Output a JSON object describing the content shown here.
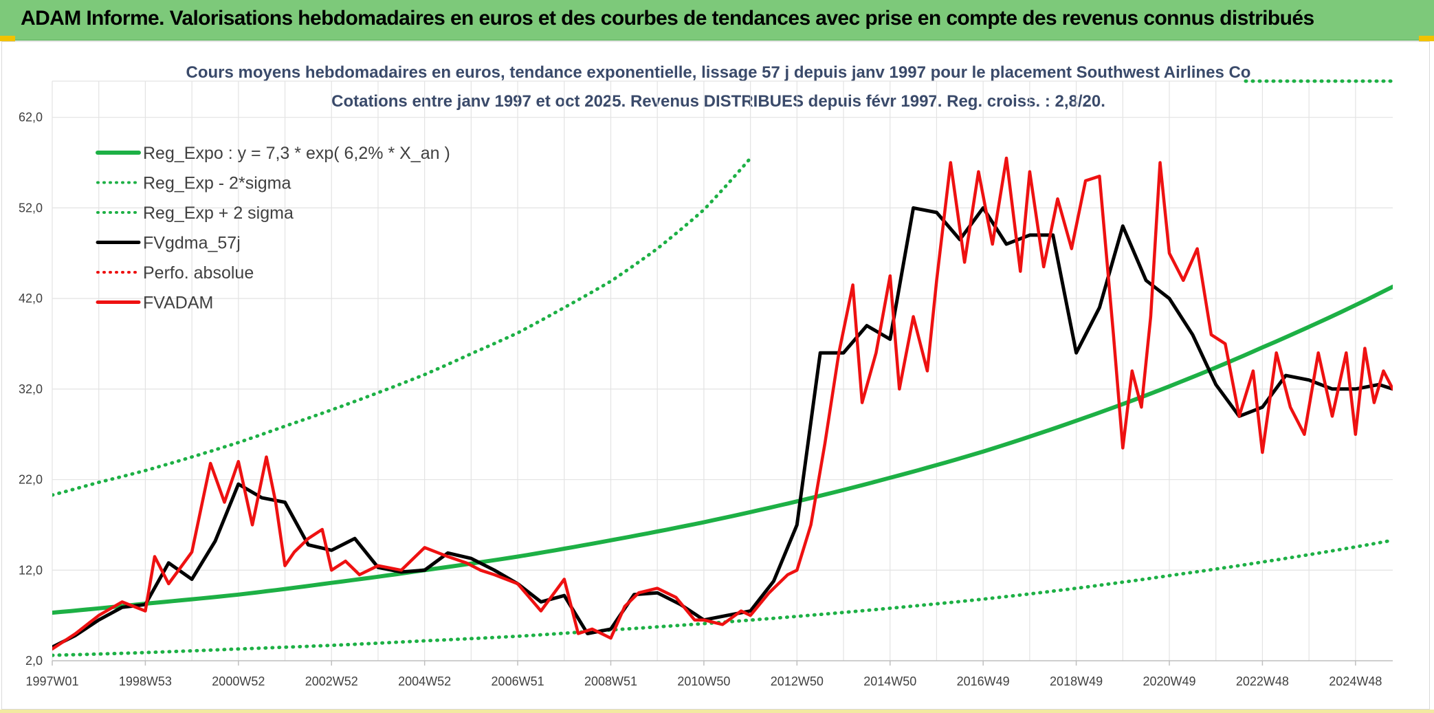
{
  "banner": {
    "title": "ADAM Informe. Valorisations hebdomadaires en euros et des courbes de tendances avec prise en compte des revenus connus distribués"
  },
  "colors": {
    "banner": "#7dc97a",
    "reg_expo": "#1db045",
    "sigma_bands": "#1db045",
    "fvgdma": "#000000",
    "fvadam": "#ee1111",
    "perfo": "#ee1111",
    "grid": "#e3e3e3"
  },
  "chart_data": {
    "type": "line",
    "title_line1": "Cours moyens hebdomadaires en euros, tendance exponentielle, lissage 57 j depuis janv 1997 pour le placement Southwest Airlines Co",
    "title_line2": "Cotations entre janv 1997 et oct 2025. Revenus DISTRIBUES depuis févr 1997. Reg. croiss. : 2,8/20.",
    "ylim": [
      2,
      66
    ],
    "xlim": [
      1997.0,
      2025.8
    ],
    "y_ticks": [
      2,
      12,
      22,
      32,
      42,
      52,
      62
    ],
    "y_tick_labels": [
      "2,0",
      "12,0",
      "22,0",
      "32,0",
      "42,0",
      "52,0",
      "62,0"
    ],
    "x_tick_positions": [
      1997.0,
      1999.0,
      2001.0,
      2003.0,
      2005.0,
      2007.0,
      2009.0,
      2011.0,
      2013.0,
      2015.0,
      2017.0,
      2019.0,
      2021.0,
      2023.0,
      2025.0
    ],
    "x_tick_labels": [
      "1997W01",
      "1998W53",
      "2000W52",
      "2002W52",
      "2004W52",
      "2006W51",
      "2008W51",
      "2010W50",
      "2012W50",
      "2014W50",
      "2016W49",
      "2018W49",
      "2020W49",
      "2022W48",
      "2024W48"
    ],
    "grid": true,
    "legend_position": "top-left",
    "legend": [
      {
        "key": "reg_expo",
        "label": "Reg_Expo : y = 7,3 * exp( 6,2% *  X_an )",
        "style": "solid-green"
      },
      {
        "key": "minus2sigma",
        "label": "Reg_Exp - 2*sigma",
        "style": "dotted-green"
      },
      {
        "key": "plus2sigma",
        "label": "Reg_Exp + 2 sigma",
        "style": "dotted-green"
      },
      {
        "key": "fvgdma",
        "label": "FVgdma_57j",
        "style": "solid-black"
      },
      {
        "key": "perfo",
        "label": "Perfo. absolue",
        "style": "dotted-red"
      },
      {
        "key": "fvadam",
        "label": "FVADAM",
        "style": "solid-red"
      }
    ],
    "series": [
      {
        "key": "reg_expo",
        "x": [
          1997.0,
          1999.0,
          2001.0,
          2003.0,
          2005.0,
          2007.0,
          2009.0,
          2011.0,
          2013.0,
          2015.0,
          2017.0,
          2019.0,
          2021.0,
          2023.0,
          2025.8
        ],
        "y": [
          7.3,
          8.3,
          9.3,
          10.6,
          12.0,
          13.5,
          15.3,
          17.3,
          19.6,
          22.2,
          25.1,
          28.5,
          32.3,
          36.6,
          43.3
        ]
      },
      {
        "key": "minus2sigma",
        "x": [
          1997.0,
          1999.0,
          2001.0,
          2003.0,
          2005.0,
          2007.0,
          2009.0,
          2011.0,
          2013.0,
          2015.0,
          2017.0,
          2019.0,
          2021.0,
          2023.0,
          2025.8
        ],
        "y": [
          2.6,
          2.9,
          3.3,
          3.7,
          4.2,
          4.7,
          5.4,
          6.1,
          6.9,
          7.8,
          8.8,
          10.0,
          11.4,
          12.9,
          15.3
        ]
      },
      {
        "key": "plus2sigma",
        "x": [
          1997.0,
          1998.0,
          1999.0,
          2000.0,
          2001.0,
          2002.0,
          2003.0,
          2004.0,
          2005.0,
          2006.0,
          2007.0,
          2008.0,
          2009.0,
          2010.0,
          2011.0,
          2012.0
        ],
        "y": [
          20.3,
          21.7,
          23.0,
          24.5,
          26.1,
          27.9,
          29.7,
          31.6,
          33.6,
          35.9,
          38.2,
          41.0,
          43.9,
          47.5,
          51.8,
          57.5
        ]
      },
      {
        "key": "fvgdma",
        "x": [
          1997.0,
          1997.5,
          1998.0,
          1998.5,
          1999.0,
          1999.5,
          2000.0,
          2000.5,
          2001.0,
          2001.5,
          2002.0,
          2002.5,
          2003.0,
          2003.5,
          2004.0,
          2004.5,
          2005.0,
          2005.5,
          2006.0,
          2006.5,
          2007.0,
          2007.5,
          2008.0,
          2008.5,
          2009.0,
          2009.5,
          2010.0,
          2010.5,
          2011.0,
          2011.5,
          2012.0,
          2012.5,
          2013.0,
          2013.5,
          2014.0,
          2014.5,
          2015.0,
          2015.5,
          2016.0,
          2016.5,
          2017.0,
          2017.5,
          2018.0,
          2018.5,
          2019.0,
          2019.5,
          2020.0,
          2020.5,
          2021.0,
          2021.5,
          2022.0,
          2022.5,
          2023.0,
          2023.5,
          2024.0,
          2024.5,
          2025.0,
          2025.5,
          2025.8
        ],
        "y": [
          3.5,
          4.8,
          6.5,
          7.9,
          8.2,
          12.8,
          11.0,
          15.2,
          21.5,
          20.0,
          19.5,
          14.8,
          14.2,
          15.5,
          12.3,
          11.8,
          12.0,
          13.9,
          13.3,
          12.0,
          10.5,
          8.5,
          9.2,
          5.0,
          5.5,
          9.3,
          9.5,
          8.2,
          6.5,
          7.0,
          7.5,
          10.8,
          17.0,
          36.0,
          36.0,
          39.0,
          37.5,
          52.0,
          51.5,
          48.5,
          52.0,
          48.0,
          49.0,
          49.0,
          36.0,
          41.0,
          50.0,
          44.0,
          42.0,
          38.0,
          32.5,
          29.0,
          30.0,
          33.5,
          33.0,
          32.0,
          32.0,
          32.5,
          32.0
        ]
      },
      {
        "key": "fvadam",
        "x": [
          1997.0,
          1997.5,
          1998.0,
          1998.5,
          1999.0,
          1999.2,
          1999.5,
          2000.0,
          2000.4,
          2000.7,
          2001.0,
          2001.3,
          2001.6,
          2001.8,
          2002.0,
          2002.2,
          2002.5,
          2002.8,
          2003.0,
          2003.3,
          2003.6,
          2004.0,
          2004.5,
          2005.0,
          2005.5,
          2005.9,
          2006.2,
          2006.5,
          2007.0,
          2007.5,
          2008.0,
          2008.3,
          2008.6,
          2009.0,
          2009.3,
          2009.6,
          2010.0,
          2010.4,
          2010.8,
          2011.0,
          2011.4,
          2011.8,
          2012.0,
          2012.4,
          2012.8,
          2013.0,
          2013.3,
          2013.6,
          2013.9,
          2014.2,
          2014.4,
          2014.7,
          2015.0,
          2015.2,
          2015.5,
          2015.8,
          2016.0,
          2016.3,
          2016.6,
          2016.9,
          2017.2,
          2017.5,
          2017.8,
          2018.0,
          2018.3,
          2018.6,
          2018.9,
          2019.2,
          2019.5,
          2019.8,
          2020.0,
          2020.2,
          2020.4,
          2020.6,
          2020.8,
          2021.0,
          2021.3,
          2021.6,
          2021.9,
          2022.2,
          2022.5,
          2022.8,
          2023.0,
          2023.3,
          2023.6,
          2023.9,
          2024.2,
          2024.5,
          2024.8,
          2025.0,
          2025.2,
          2025.4,
          2025.6,
          2025.8
        ],
        "y": [
          3.3,
          5.0,
          7.0,
          8.5,
          7.5,
          13.5,
          10.5,
          14.0,
          23.8,
          19.5,
          24.0,
          17.0,
          24.5,
          19.5,
          12.5,
          14.0,
          15.5,
          16.5,
          12.0,
          13.0,
          11.5,
          12.5,
          12.0,
          14.5,
          13.5,
          12.8,
          12.0,
          11.5,
          10.5,
          7.5,
          11.0,
          5.0,
          5.5,
          4.5,
          8.0,
          9.5,
          10.0,
          9.0,
          6.5,
          6.5,
          6.0,
          7.5,
          7.0,
          9.5,
          11.5,
          12.0,
          17.0,
          26.0,
          36.0,
          43.5,
          30.5,
          36.0,
          44.5,
          32.0,
          40.0,
          34.0,
          44.0,
          57.0,
          46.0,
          56.0,
          48.0,
          57.5,
          45.0,
          56.0,
          45.5,
          53.0,
          47.5,
          55.0,
          55.5,
          38.0,
          25.5,
          34.0,
          30.0,
          40.0,
          57.0,
          47.0,
          44.0,
          47.5,
          38.0,
          37.0,
          29.0,
          34.0,
          25.0,
          36.0,
          30.0,
          27.0,
          36.0,
          29.0,
          36.0,
          27.0,
          36.5,
          30.5,
          34.0,
          32.0
        ]
      }
    ]
  }
}
